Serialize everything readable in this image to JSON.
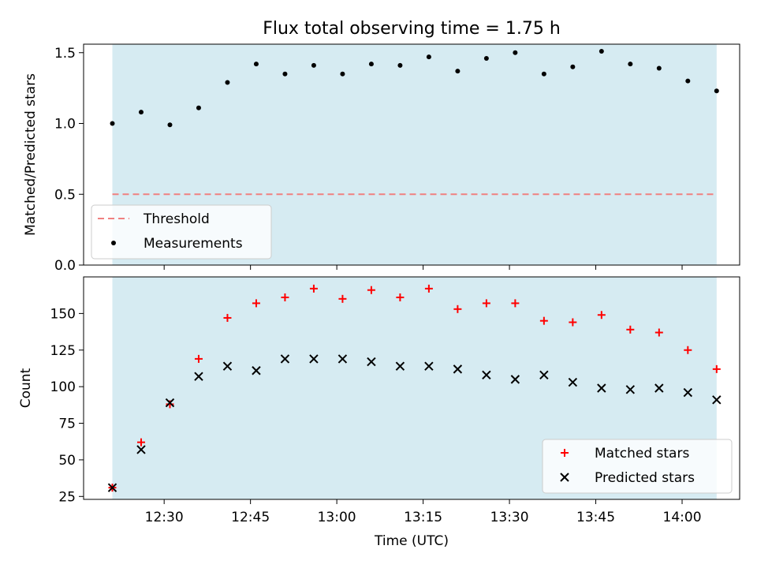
{
  "figure": {
    "title": "Flux total observing time = 1.75 h",
    "background_color": "#ffffff",
    "shade_color": "#add8e6",
    "time_axis": {
      "label": "Time (UTC)",
      "range": [
        "12:16",
        "14:10"
      ],
      "ticks": [
        "12:30",
        "12:45",
        "13:00",
        "13:15",
        "13:30",
        "13:45",
        "14:00"
      ]
    }
  },
  "chart_data": [
    {
      "type": "scatter",
      "panel": "top",
      "title": "Flux total observing time = 1.75 h",
      "xlabel": "",
      "ylabel": "Matched/Predicted stars",
      "ylim": [
        0,
        1.56
      ],
      "yticks": [
        "0.0",
        "0.5",
        "1.0",
        "1.5"
      ],
      "x_range": [
        "12:16",
        "14:10"
      ],
      "shaded_span": [
        "12:21",
        "14:06"
      ],
      "grid": false,
      "legend_position": "lower left",
      "series": [
        {
          "name": "Threshold",
          "kind": "hline",
          "y": 0.5,
          "x_span": [
            "12:21",
            "14:06"
          ],
          "color": "#f08080",
          "style": "dashed"
        },
        {
          "name": "Measurements",
          "kind": "points",
          "color": "#000000",
          "marker": "dot",
          "x": [
            "12:21",
            "12:26",
            "12:31",
            "12:36",
            "12:41",
            "12:46",
            "12:51",
            "12:56",
            "13:01",
            "13:06",
            "13:11",
            "13:16",
            "13:21",
            "13:26",
            "13:31",
            "13:36",
            "13:41",
            "13:46",
            "13:51",
            "13:56",
            "14:01",
            "14:06"
          ],
          "y": [
            1.0,
            1.08,
            0.99,
            1.11,
            1.29,
            1.42,
            1.35,
            1.41,
            1.35,
            1.42,
            1.41,
            1.47,
            1.37,
            1.46,
            1.5,
            1.35,
            1.4,
            1.51,
            1.42,
            1.39,
            1.3,
            1.23
          ]
        }
      ]
    },
    {
      "type": "scatter",
      "panel": "bottom",
      "xlabel": "Time (UTC)",
      "ylabel": "Count",
      "ylim": [
        23,
        175
      ],
      "yticks": [
        "25",
        "50",
        "75",
        "100",
        "125",
        "150"
      ],
      "x_range": [
        "12:16",
        "14:10"
      ],
      "xticks": [
        "12:30",
        "12:45",
        "13:00",
        "13:15",
        "13:30",
        "13:45",
        "14:00"
      ],
      "shaded_span": [
        "12:21",
        "14:06"
      ],
      "grid": false,
      "legend_position": "lower right",
      "series": [
        {
          "name": "Matched stars",
          "kind": "points",
          "color": "#ff0000",
          "marker": "plus",
          "x": [
            "12:21",
            "12:26",
            "12:31",
            "12:36",
            "12:41",
            "12:46",
            "12:51",
            "12:56",
            "13:01",
            "13:06",
            "13:11",
            "13:16",
            "13:21",
            "13:26",
            "13:31",
            "13:36",
            "13:41",
            "13:46",
            "13:51",
            "13:56",
            "14:01",
            "14:06"
          ],
          "y": [
            31,
            62,
            88,
            119,
            147,
            157,
            161,
            167,
            160,
            166,
            161,
            167,
            153,
            157,
            157,
            145,
            144,
            149,
            139,
            137,
            125,
            112
          ]
        },
        {
          "name": "Predicted stars",
          "kind": "points",
          "color": "#000000",
          "marker": "x",
          "x": [
            "12:21",
            "12:26",
            "12:31",
            "12:36",
            "12:41",
            "12:46",
            "12:51",
            "12:56",
            "13:01",
            "13:06",
            "13:11",
            "13:16",
            "13:21",
            "13:26",
            "13:31",
            "13:36",
            "13:41",
            "13:46",
            "13:51",
            "13:56",
            "14:01",
            "14:06"
          ],
          "y": [
            31,
            57,
            89,
            107,
            114,
            111,
            119,
            119,
            119,
            117,
            114,
            114,
            112,
            108,
            105,
            108,
            103,
            99,
            98,
            99,
            96,
            91
          ]
        }
      ]
    }
  ]
}
